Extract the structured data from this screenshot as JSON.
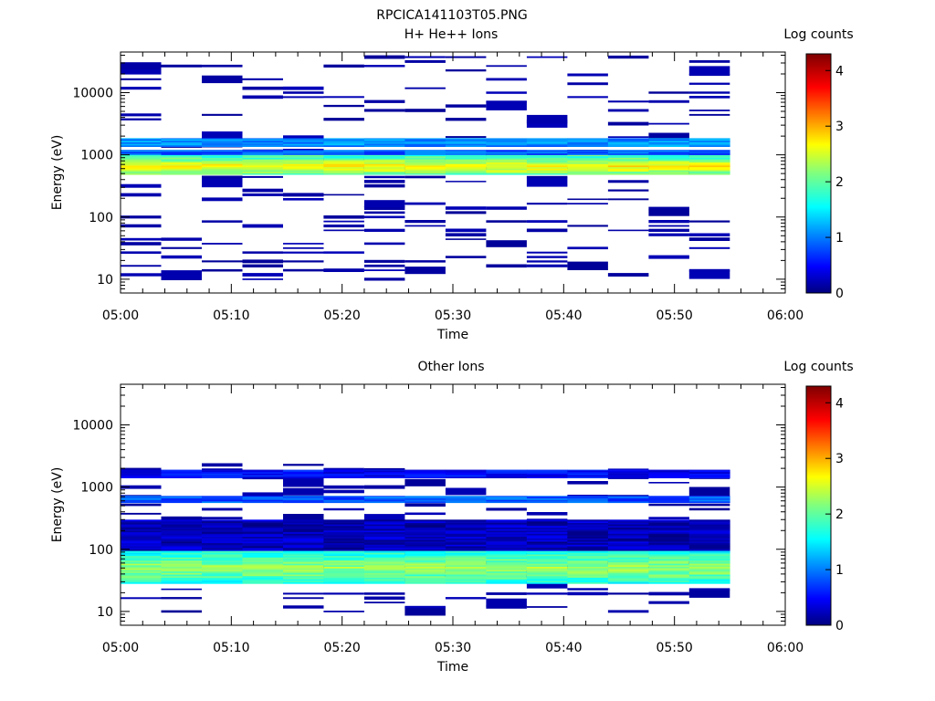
{
  "figure_title": "RPCICA141103T05.PNG",
  "chart_data": [
    {
      "type": "heatmap",
      "title": "H+ He++ Ions",
      "xlabel": "Time",
      "ylabel": "Energy (eV)",
      "xlim": [
        "05:00",
        "06:00"
      ],
      "x_ticks": [
        "05:00",
        "05:10",
        "05:20",
        "05:30",
        "05:40",
        "05:50",
        "06:00"
      ],
      "ylim": [
        6,
        45000
      ],
      "y_scale": "log",
      "y_ticks": [
        10,
        100,
        1000,
        10000
      ],
      "y_tick_labels": [
        "10",
        "100",
        "1000",
        "10000"
      ],
      "colorbar": {
        "label": "Log counts",
        "min": 0,
        "max": 4.3,
        "ticks": [
          "0",
          "1",
          "2",
          "3",
          "4"
        ]
      },
      "data_time_range": [
        "05:00",
        "05:55"
      ],
      "time_bins": 15,
      "bands": [
        {
          "e_lo": 480,
          "e_hi": 1000,
          "level": 1.9,
          "peak_e": 650,
          "peak_level": 2.8
        },
        {
          "e_lo": 1000,
          "e_hi": 1200,
          "level": 0.9
        },
        {
          "e_lo": 1350,
          "e_hi": 1850,
          "level": 1.15
        }
      ],
      "sparse_energy_range": [
        10,
        40000
      ],
      "sparse_level": 0.1
    },
    {
      "type": "heatmap",
      "title": "Other Ions",
      "xlabel": "Time",
      "ylabel": "Energy (eV)",
      "xlim": [
        "05:00",
        "06:00"
      ],
      "x_ticks": [
        "05:00",
        "05:10",
        "05:20",
        "05:30",
        "05:40",
        "05:50",
        "06:00"
      ],
      "ylim": [
        6,
        45000
      ],
      "y_scale": "log",
      "y_ticks": [
        10,
        100,
        1000,
        10000
      ],
      "y_tick_labels": [
        "10",
        "100",
        "1000",
        "10000"
      ],
      "colorbar": {
        "label": "Log counts",
        "min": 0,
        "max": 4.3,
        "ticks": [
          "0",
          "1",
          "2",
          "3",
          "4"
        ]
      },
      "data_time_range": [
        "05:00",
        "05:55"
      ],
      "time_bins": 15,
      "bands": [
        {
          "e_lo": 28,
          "e_hi": 95,
          "level": 1.7,
          "peak_e": 50,
          "peak_level": 2.3
        },
        {
          "e_lo": 95,
          "e_hi": 300,
          "level": 0.25
        },
        {
          "e_lo": 560,
          "e_hi": 720,
          "level": 0.9
        },
        {
          "e_lo": 1400,
          "e_hi": 1900,
          "level": 0.55
        }
      ],
      "sparse_energy_range": [
        10,
        2500
      ],
      "sparse_level": 0.1
    }
  ]
}
